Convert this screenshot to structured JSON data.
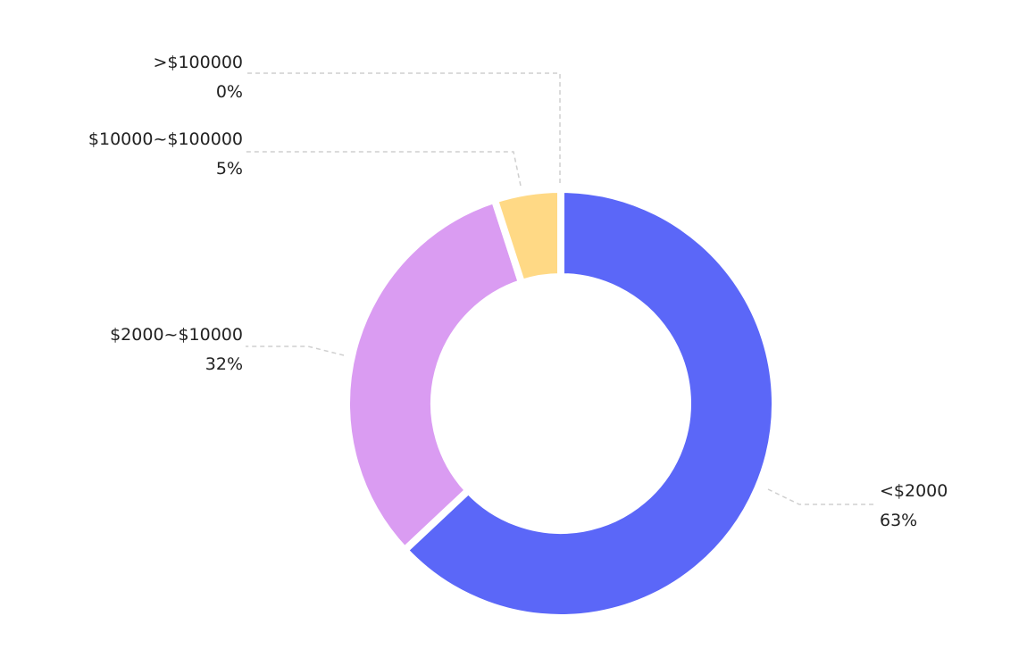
{
  "chart_data": {
    "type": "pie",
    "donut": true,
    "start": "top",
    "direction": "clockwise",
    "legend": "none",
    "slices": [
      {
        "label": "<$2000",
        "value": 63,
        "value_label": "63%",
        "color": "#5B67F8"
      },
      {
        "label": "$2000~$10000",
        "value": 32,
        "value_label": "32%",
        "color": "#DA9CF2"
      },
      {
        "label": "$10000~$100000",
        "value": 5,
        "value_label": "5%",
        "color": "#FFD985"
      },
      {
        "label": ">$100000",
        "value": 0,
        "value_label": "0%",
        "color": "#8FD3B4"
      }
    ]
  }
}
